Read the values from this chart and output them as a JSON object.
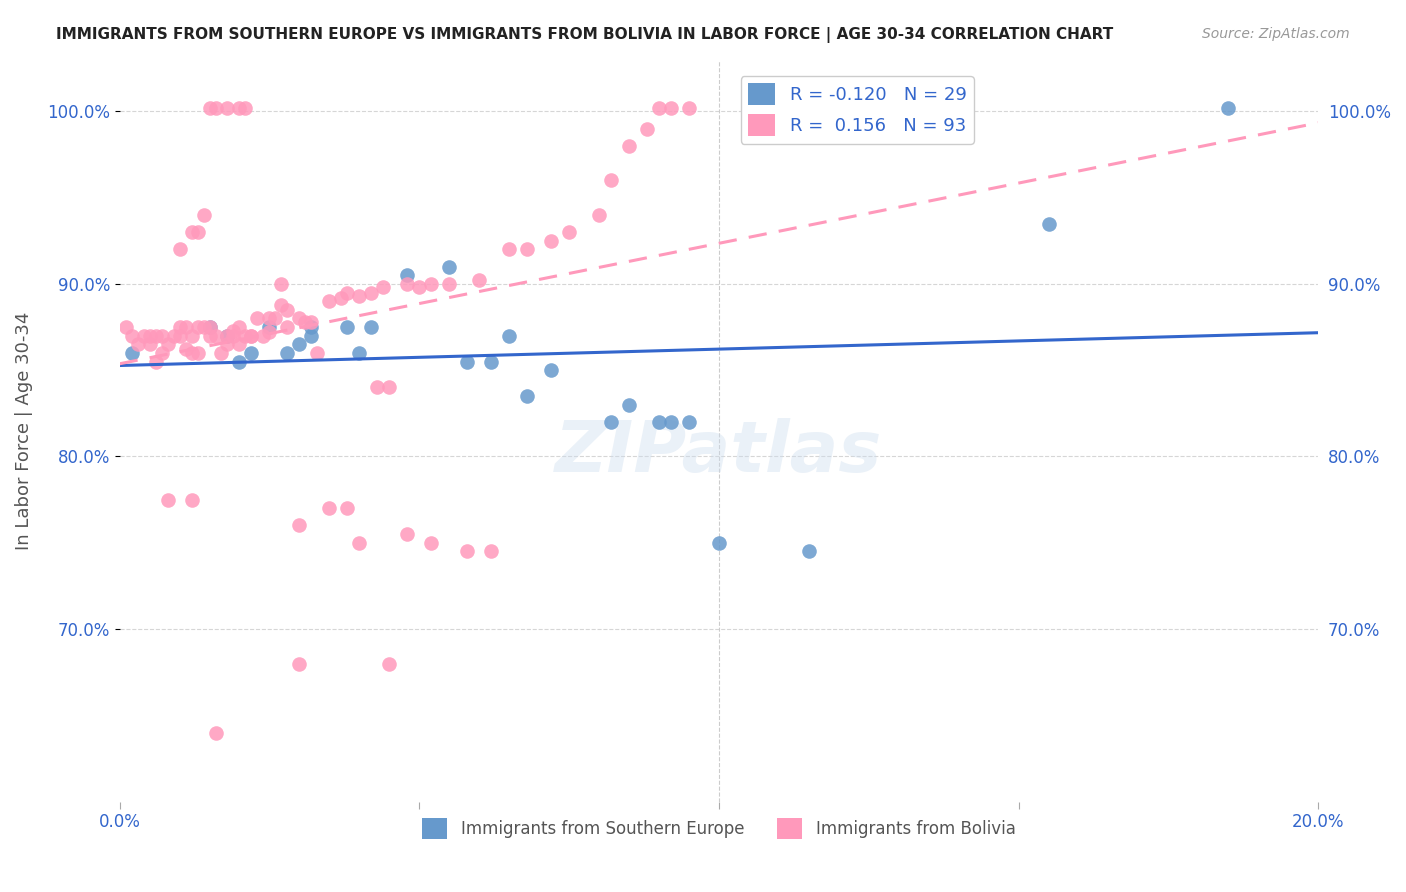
{
  "title": "IMMIGRANTS FROM SOUTHERN EUROPE VS IMMIGRANTS FROM BOLIVIA IN LABOR FORCE | AGE 30-34 CORRELATION CHART",
  "source": "Source: ZipAtlas.com",
  "ylabel": "In Labor Force | Age 30-34",
  "xlim": [
    0.0,
    0.2
  ],
  "ylim": [
    0.6,
    1.03
  ],
  "blue_color": "#6699CC",
  "pink_color": "#FF99BB",
  "blue_R": -0.12,
  "blue_N": 29,
  "pink_R": 0.156,
  "pink_N": 93,
  "accent_color": "#3366CC",
  "watermark": "ZIPatlas",
  "blue_scatter_x": [
    0.002,
    0.015,
    0.018,
    0.02,
    0.022,
    0.025,
    0.028,
    0.03,
    0.032,
    0.032,
    0.038,
    0.04,
    0.042,
    0.048,
    0.055,
    0.058,
    0.062,
    0.065,
    0.068,
    0.072,
    0.082,
    0.085,
    0.09,
    0.092,
    0.095,
    0.1,
    0.115,
    0.155,
    0.185
  ],
  "blue_scatter_y": [
    0.86,
    0.875,
    0.87,
    0.855,
    0.86,
    0.875,
    0.86,
    0.865,
    0.87,
    0.875,
    0.875,
    0.86,
    0.875,
    0.905,
    0.91,
    0.855,
    0.855,
    0.87,
    0.835,
    0.85,
    0.82,
    0.83,
    0.82,
    0.82,
    0.82,
    0.75,
    0.745,
    0.935,
    1.002
  ],
  "pink_scatter_x": [
    0.001,
    0.002,
    0.003,
    0.004,
    0.005,
    0.005,
    0.006,
    0.006,
    0.007,
    0.007,
    0.008,
    0.009,
    0.01,
    0.01,
    0.011,
    0.011,
    0.012,
    0.012,
    0.013,
    0.013,
    0.014,
    0.015,
    0.015,
    0.016,
    0.017,
    0.018,
    0.018,
    0.019,
    0.019,
    0.02,
    0.02,
    0.021,
    0.022,
    0.023,
    0.024,
    0.025,
    0.026,
    0.027,
    0.028,
    0.03,
    0.031,
    0.032,
    0.035,
    0.037,
    0.038,
    0.04,
    0.042,
    0.044,
    0.048,
    0.05,
    0.052,
    0.055,
    0.06,
    0.065,
    0.068,
    0.072,
    0.075,
    0.08,
    0.082,
    0.085,
    0.088,
    0.09,
    0.092,
    0.095,
    0.01,
    0.012,
    0.013,
    0.014,
    0.015,
    0.016,
    0.018,
    0.02,
    0.021,
    0.022,
    0.025,
    0.027,
    0.028,
    0.03,
    0.033,
    0.035,
    0.038,
    0.04,
    0.043,
    0.045,
    0.048,
    0.052,
    0.058,
    0.062,
    0.03,
    0.045,
    0.008,
    0.012,
    0.016
  ],
  "pink_scatter_y": [
    0.875,
    0.87,
    0.865,
    0.87,
    0.87,
    0.865,
    0.87,
    0.855,
    0.87,
    0.86,
    0.865,
    0.87,
    0.875,
    0.87,
    0.875,
    0.862,
    0.86,
    0.87,
    0.86,
    0.875,
    0.875,
    0.875,
    0.87,
    0.87,
    0.86,
    0.865,
    0.87,
    0.87,
    0.873,
    0.865,
    0.875,
    0.87,
    0.87,
    0.88,
    0.87,
    0.872,
    0.88,
    0.888,
    0.885,
    0.88,
    0.878,
    0.878,
    0.89,
    0.892,
    0.895,
    0.893,
    0.895,
    0.898,
    0.9,
    0.898,
    0.9,
    0.9,
    0.902,
    0.92,
    0.92,
    0.925,
    0.93,
    0.94,
    0.96,
    0.98,
    0.99,
    1.002,
    1.002,
    1.002,
    0.92,
    0.93,
    0.93,
    0.94,
    1.002,
    1.002,
    1.002,
    1.002,
    1.002,
    0.87,
    0.88,
    0.9,
    0.875,
    0.76,
    0.86,
    0.77,
    0.77,
    0.75,
    0.84,
    0.84,
    0.755,
    0.75,
    0.745,
    0.745,
    0.68,
    0.68,
    0.775,
    0.775,
    0.64
  ]
}
